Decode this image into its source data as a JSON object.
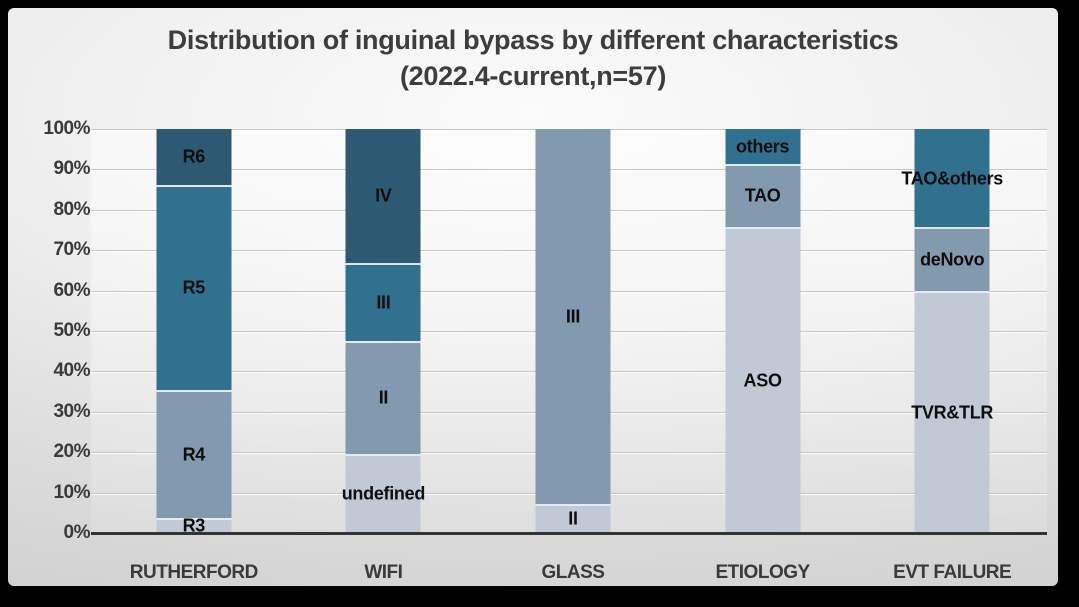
{
  "chart_data": {
    "type": "bar",
    "stacked": true,
    "percent_axis": true,
    "title": "Distribution of inguinal bypass by different characteristics",
    "subtitle": "(2022.4-current,n=57)",
    "legend": "none",
    "grid": true,
    "y_axis": {
      "min": 0,
      "max": 100,
      "step": 10,
      "tick_labels_top_to_bottom": [
        "100%",
        "90%",
        "80%",
        "70%",
        "60%",
        "50%",
        "40%",
        "30%",
        "20%",
        "10%",
        "0%"
      ]
    },
    "categories": [
      "RUTHERFORD",
      "WIFI",
      "GLASS",
      "ETIOLOGY",
      "EVT FAILURE"
    ],
    "palette": {
      "dark": "#2D5A72",
      "teal": "#31708E",
      "gray": "#8399AE",
      "light": "#C0C9D5"
    },
    "bars": [
      {
        "category": "RUTHERFORD",
        "segments_bottom_to_top": [
          {
            "label": "R3",
            "value": 3.5,
            "color": "light"
          },
          {
            "label": "R4",
            "value": 31.6,
            "color": "gray"
          },
          {
            "label": "R5",
            "value": 50.9,
            "color": "teal"
          },
          {
            "label": "R6",
            "value": 14.0,
            "color": "dark"
          }
        ]
      },
      {
        "category": "WIFI",
        "segments_bottom_to_top": [
          {
            "label": "undefined",
            "value": 19.3,
            "color": "light"
          },
          {
            "label": "II",
            "value": 28.1,
            "color": "gray"
          },
          {
            "label": "III",
            "value": 19.3,
            "color": "teal"
          },
          {
            "label": "IV",
            "value": 33.3,
            "color": "dark"
          }
        ]
      },
      {
        "category": "GLASS",
        "segments_bottom_to_top": [
          {
            "label": "II",
            "value": 7.0,
            "color": "light"
          },
          {
            "label": "III",
            "value": 93.0,
            "color": "gray"
          }
        ]
      },
      {
        "category": "ETIOLOGY",
        "segments_bottom_to_top": [
          {
            "label": "ASO",
            "value": 75.4,
            "color": "light"
          },
          {
            "label": "TAO",
            "value": 15.8,
            "color": "gray"
          },
          {
            "label": "others",
            "value": 8.8,
            "color": "teal"
          }
        ]
      },
      {
        "category": "EVT FAILURE",
        "segments_bottom_to_top": [
          {
            "label": "TVR&TLR",
            "value": 59.6,
            "color": "light"
          },
          {
            "label": "deNovo",
            "value": 15.8,
            "color": "gray"
          },
          {
            "label": "TAO&others",
            "value": 24.6,
            "color": "teal"
          }
        ]
      }
    ]
  }
}
